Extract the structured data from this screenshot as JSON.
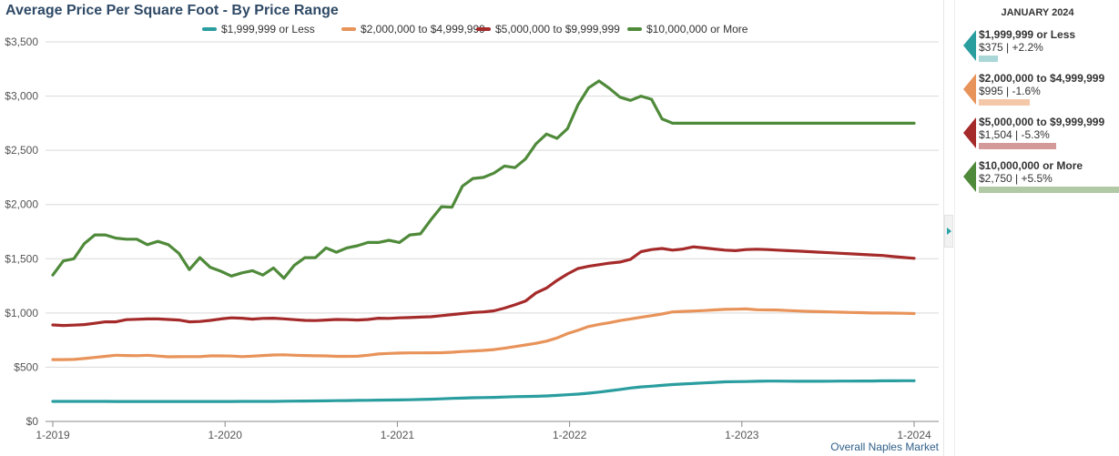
{
  "title": "Average Price Per Square Foot - By Price Range",
  "footer": "Overall Naples Market",
  "panel": {
    "heading": "JANUARY 2024",
    "items": [
      {
        "name": "$1,999,999 or Less",
        "stat": "$375 | +2.2%",
        "color": "#2a9d9f",
        "bar_color": "#a9d6d7",
        "value": 375
      },
      {
        "name": "$2,000,000 to $4,999,999",
        "stat": "$995 | -1.6%",
        "color": "#e8935a",
        "bar_color": "#f4c7a8",
        "value": 995
      },
      {
        "name": "$5,000,000 to $9,999,999",
        "stat": "$1,504 | -5.3%",
        "color": "#a52a2a",
        "bar_color": "#d49a9a",
        "value": 1504
      },
      {
        "name": "$10,000,000 or More",
        "stat": "$2,750 | +5.5%",
        "color": "#4f8a3a",
        "bar_color": "#b2c9a5",
        "value": 2750
      }
    ]
  },
  "chart_data": {
    "type": "line",
    "title": "Average Price Per Square Foot - By Price Range",
    "x_tick_labels": [
      "1-2019",
      "1-2020",
      "1-2021",
      "1-2022",
      "1-2023",
      "1-2024"
    ],
    "x_range": [
      "2019-01",
      "2024-01"
    ],
    "y_tick_labels": [
      "$0",
      "$500",
      "$1,000",
      "$1,500",
      "$2,000",
      "$2,500",
      "$3,000",
      "$3,500"
    ],
    "ylim": [
      0,
      3500
    ],
    "grid": true,
    "legend_position": "top",
    "series": [
      {
        "name": "$1,999,999 or Less",
        "color": "#2a9d9f",
        "values": [
          185,
          185,
          185,
          185,
          185,
          185,
          184,
          184,
          184,
          184,
          184,
          184,
          184,
          184,
          184,
          184,
          184,
          184,
          185,
          185,
          185,
          185,
          186,
          187,
          188,
          189,
          190,
          191,
          192,
          194,
          195,
          196,
          197,
          198,
          200,
          202,
          205,
          208,
          212,
          215,
          218,
          220,
          222,
          225,
          228,
          230,
          232,
          235,
          240,
          246,
          252,
          260,
          270,
          282,
          295,
          308,
          318,
          325,
          332,
          340,
          345,
          350,
          355,
          360,
          365,
          367,
          368,
          370,
          372,
          372,
          371,
          370,
          370,
          370,
          371,
          372,
          372,
          373,
          373,
          374,
          374,
          375,
          375
        ]
      },
      {
        "name": "$2,000,000 to $4,999,999",
        "color": "#e8935a",
        "values": [
          570,
          570,
          572,
          580,
          590,
          600,
          610,
          608,
          606,
          610,
          603,
          596,
          597,
          598,
          598,
          604,
          604,
          603,
          598,
          602,
          608,
          613,
          614,
          610,
          608,
          605,
          604,
          600,
          600,
          601,
          610,
          622,
          627,
          630,
          632,
          632,
          633,
          634,
          638,
          645,
          650,
          655,
          662,
          675,
          690,
          705,
          720,
          740,
          770,
          810,
          840,
          875,
          895,
          910,
          930,
          945,
          960,
          975,
          990,
          1010,
          1015,
          1018,
          1022,
          1028,
          1033,
          1035,
          1037,
          1030,
          1028,
          1027,
          1022,
          1018,
          1015,
          1012,
          1010,
          1007,
          1005,
          1003,
          1000,
          1000,
          999,
          997,
          995
        ]
      },
      {
        "name": "$5,000,000 to $9,999,999",
        "color": "#a52a2a",
        "values": [
          890,
          885,
          888,
          893,
          905,
          918,
          918,
          938,
          942,
          945,
          945,
          940,
          935,
          918,
          922,
          932,
          945,
          955,
          952,
          943,
          950,
          952,
          946,
          938,
          932,
          930,
          935,
          940,
          938,
          935,
          940,
          952,
          950,
          955,
          958,
          962,
          965,
          975,
          985,
          995,
          1005,
          1010,
          1020,
          1045,
          1075,
          1110,
          1185,
          1230,
          1300,
          1360,
          1410,
          1430,
          1445,
          1460,
          1470,
          1495,
          1565,
          1585,
          1595,
          1580,
          1590,
          1610,
          1600,
          1590,
          1580,
          1575,
          1585,
          1588,
          1585,
          1580,
          1575,
          1570,
          1565,
          1560,
          1555,
          1550,
          1545,
          1540,
          1535,
          1530,
          1520,
          1512,
          1504
        ]
      },
      {
        "name": "$10,000,000 or More",
        "color": "#4f8a3a",
        "values": [
          1350,
          1480,
          1500,
          1640,
          1720,
          1720,
          1690,
          1680,
          1680,
          1630,
          1660,
          1630,
          1550,
          1400,
          1510,
          1420,
          1385,
          1340,
          1370,
          1390,
          1350,
          1415,
          1320,
          1440,
          1510,
          1510,
          1600,
          1560,
          1600,
          1620,
          1650,
          1650,
          1670,
          1650,
          1720,
          1730,
          1860,
          1980,
          1975,
          2170,
          2240,
          2250,
          2290,
          2355,
          2340,
          2420,
          2560,
          2650,
          2610,
          2700,
          2920,
          3075,
          3140,
          3070,
          2990,
          2960,
          3000,
          2970,
          2790,
          2750,
          2750,
          2750,
          2750,
          2750,
          2750,
          2750,
          2750,
          2750,
          2750,
          2750,
          2750,
          2750,
          2750,
          2750,
          2750,
          2750,
          2750,
          2750,
          2750,
          2750,
          2750,
          2750,
          2750
        ]
      }
    ]
  }
}
